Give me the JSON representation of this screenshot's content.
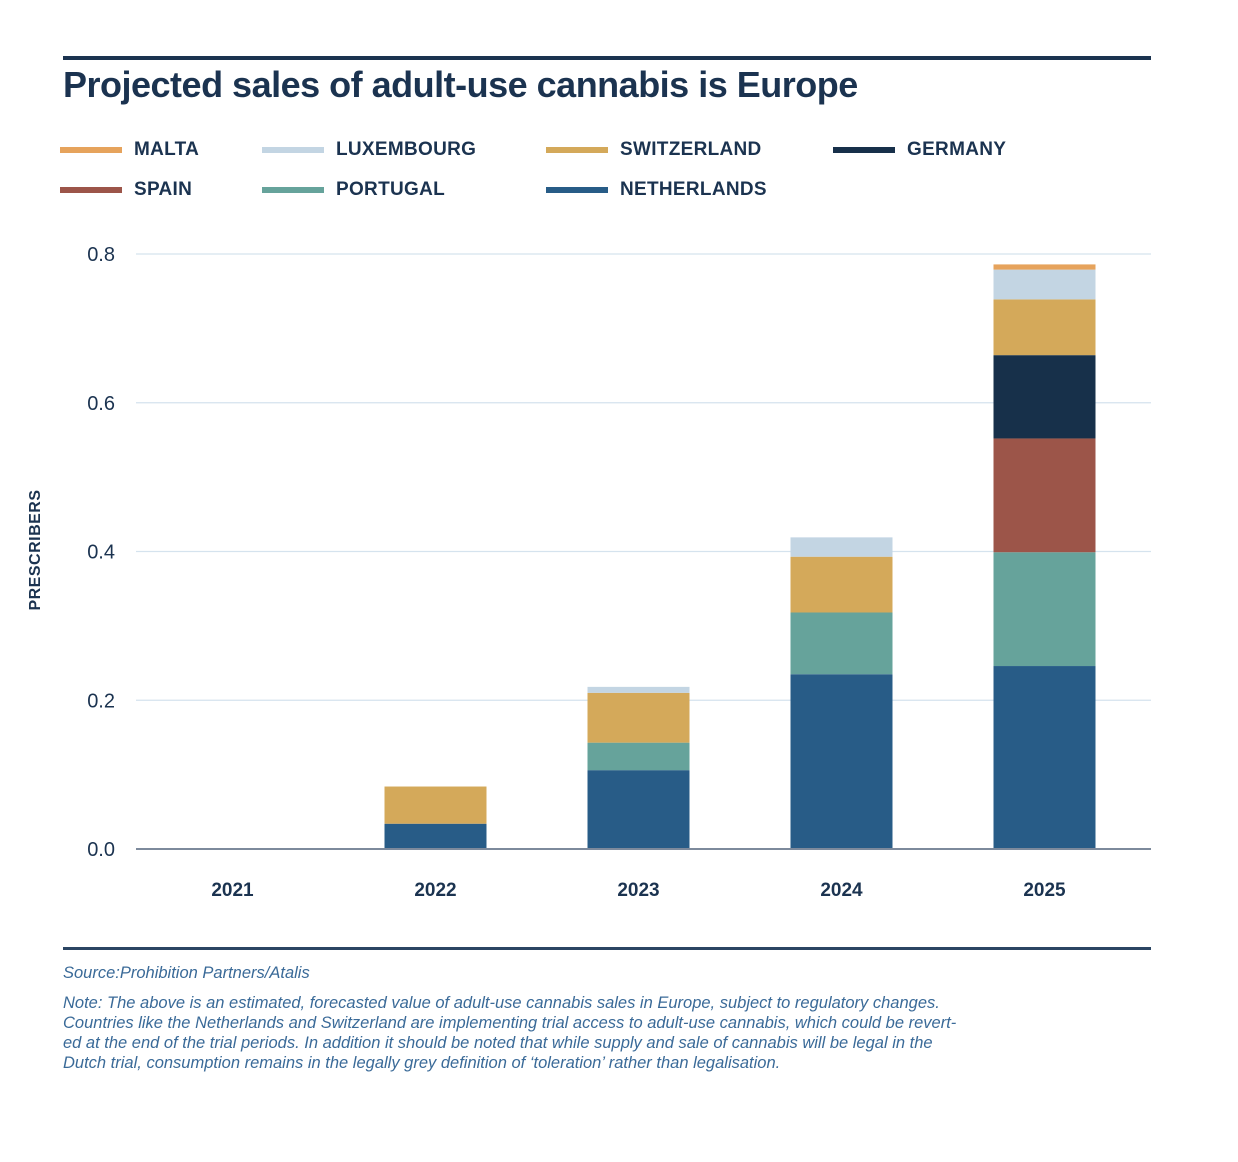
{
  "chart_data": {
    "type": "bar",
    "stacked": true,
    "title": "Projected sales of adult-use cannabis is Europe",
    "xlabel": "",
    "ylabel": "PRESCRIBERS",
    "ylim": [
      0,
      0.8
    ],
    "yticks": [
      "0.0",
      "0.2",
      "0.4",
      "0.6",
      "0.8"
    ],
    "ytick_values": [
      0,
      0.2,
      0.4,
      0.6,
      0.8
    ],
    "grid": true,
    "legend_position": "top",
    "categories": [
      "2021",
      "2022",
      "2023",
      "2024",
      "2025"
    ],
    "legend_order": [
      "MALTA",
      "LUXEMBOURG",
      "SWITZERLAND",
      "GERMANY",
      "SPAIN",
      "PORTUGAL",
      "NETHERLANDS"
    ],
    "series": [
      {
        "name": "NETHERLANDS",
        "color": "#285c87",
        "values": [
          0,
          0.034,
          0.106,
          0.235,
          0.246
        ]
      },
      {
        "name": "PORTUGAL",
        "color": "#66a39b",
        "values": [
          0,
          0,
          0.037,
          0.083,
          0.153
        ]
      },
      {
        "name": "SPAIN",
        "color": "#9c5549",
        "values": [
          0,
          0,
          0,
          0,
          0.153
        ]
      },
      {
        "name": "GERMANY",
        "color": "#17304a",
        "values": [
          0,
          0,
          0,
          0,
          0.112
        ]
      },
      {
        "name": "SWITZERLAND",
        "color": "#d4a95a",
        "values": [
          0,
          0.05,
          0.067,
          0.075,
          0.075
        ]
      },
      {
        "name": "LUXEMBOURG",
        "color": "#c3d5e3",
        "values": [
          0,
          0,
          0.008,
          0.026,
          0.04
        ]
      },
      {
        "name": "MALTA",
        "color": "#e6a35c",
        "values": [
          0,
          0,
          0,
          0,
          0.007
        ]
      }
    ]
  },
  "legend": [
    {
      "label": "MALTA",
      "color": "#e6a35c"
    },
    {
      "label": "LUXEMBOURG",
      "color": "#c3d5e3"
    },
    {
      "label": "SWITZERLAND",
      "color": "#d4a95a"
    },
    {
      "label": "GERMANY",
      "color": "#17304a"
    },
    {
      "label": "SPAIN",
      "color": "#9c5549"
    },
    {
      "label": "PORTUGAL",
      "color": "#66a39b"
    },
    {
      "label": "NETHERLANDS",
      "color": "#285c87"
    }
  ],
  "colors": {
    "text": "#1b3350",
    "grid": "#d5e3ee",
    "axis": "#7d8a9c",
    "note": "#3a6a98"
  },
  "footer": {
    "source": "Source:Prohibition Partners/Atalis",
    "note_lines": [
      "Note: The above is an estimated, forecasted value of adult-use cannabis sales in Europe, subject to regulatory changes.",
      "Countries like the Netherlands and Switzerland are implementing trial access to adult-use cannabis, which could be revert-",
      "ed at the end of the trial periods. In addition it should be noted that while supply and sale of cannabis will be legal in the",
      "Dutch trial, consumption remains in the legally grey definition of ‘toleration’ rather than legalisation."
    ]
  }
}
